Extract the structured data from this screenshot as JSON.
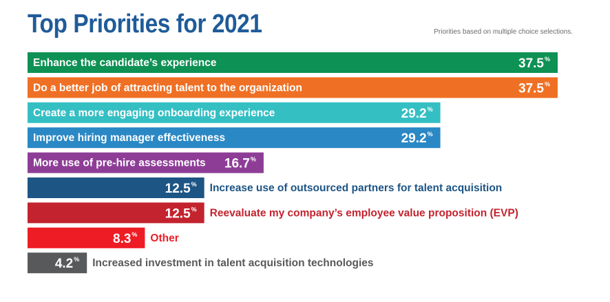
{
  "title": "Top Priorities for 2021",
  "subtitle": "Priorities based on multiple choice selections.",
  "value_suffix": "%",
  "chart_data": {
    "type": "bar",
    "orientation": "horizontal",
    "title": "Top Priorities for 2021",
    "subtitle": "Priorities based on multiple choice selections.",
    "xlabel": "",
    "ylabel": "",
    "xlim": [
      0,
      37.5
    ],
    "grid": false,
    "legend": "none",
    "categories": [
      "Enhance the candidate’s experience",
      "Do a better job of attracting talent to the organization",
      "Create a more engaging onboarding experience",
      "Improve hiring manager effectiveness",
      "More use of pre-hire assessments",
      "Increase use of outsourced partners for talent acquisition",
      "Reevaluate my company’s employee value proposition (EVP)",
      "Other",
      "Increased investment in talent acquisition technologies"
    ],
    "values": [
      37.5,
      37.5,
      29.2,
      29.2,
      16.7,
      12.5,
      12.5,
      8.3,
      4.2
    ],
    "value_labels": [
      "37.5",
      "37.5",
      "29.2",
      "29.2",
      "16.7",
      "12.5",
      "12.5",
      "8.3",
      "4.2"
    ],
    "colors": [
      "#0e9154",
      "#ef7024",
      "#34bfc3",
      "#2a88c5",
      "#8e3d97",
      "#1d5585",
      "#c3232e",
      "#ee1c24",
      "#58595b"
    ],
    "label_inside": [
      true,
      true,
      true,
      true,
      true,
      false,
      false,
      false,
      false
    ]
  }
}
